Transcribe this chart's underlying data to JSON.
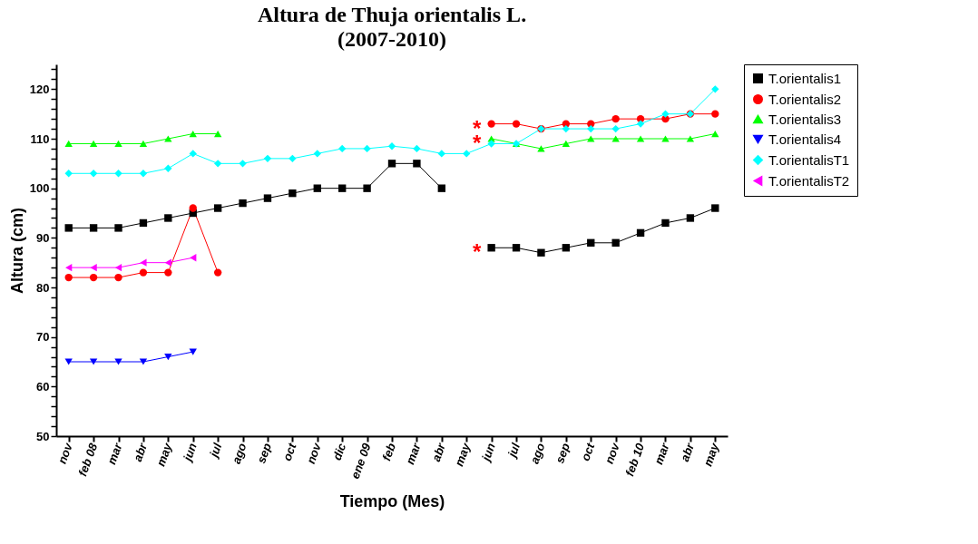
{
  "chart_data": {
    "type": "line",
    "title": "Altura de Thuja orientalis L.",
    "subtitle": "(2007-2010)",
    "xlabel": "Tiempo  (Mes)",
    "ylabel": "Altura  (cm)",
    "categories": [
      "nov",
      "feb  08",
      "mar",
      "abr",
      "may",
      "jun",
      "jul",
      "ago",
      "sep",
      "oct",
      "nov",
      "dic",
      "ene  09",
      "feb",
      "mar",
      "abr",
      "may",
      "jun",
      "jul",
      "ago",
      "sep",
      "oct",
      "nov",
      "feb  10",
      "mar",
      "abr",
      "may"
    ],
    "ylim": [
      50,
      125
    ],
    "yticks": [
      50,
      {
        "value": 52,
        "label": null
      },
      {
        "value": 54,
        "label": null
      },
      {
        "value": 56,
        "label": null
      },
      {
        "value": 58,
        "label": null
      },
      60,
      {
        "value": 62,
        "label": null
      },
      {
        "value": 64,
        "label": null
      },
      {
        "value": 66,
        "label": null
      },
      {
        "value": 68,
        "label": null
      },
      70,
      {
        "value": 72,
        "label": null
      },
      {
        "value": 74,
        "label": null
      },
      {
        "value": 76,
        "label": null
      },
      {
        "value": 78,
        "label": null
      },
      80,
      {
        "value": 82,
        "label": null
      },
      {
        "value": 84,
        "label": null
      },
      {
        "value": 86,
        "label": null
      },
      {
        "value": 88,
        "label": null
      },
      90,
      {
        "value": 92,
        "label": null
      },
      {
        "value": 94,
        "label": null
      },
      {
        "value": 96,
        "label": null
      },
      {
        "value": 98,
        "label": null
      },
      100,
      {
        "value": 102,
        "label": null
      },
      {
        "value": 104,
        "label": null
      },
      {
        "value": 106,
        "label": null
      },
      {
        "value": 108,
        "label": null
      },
      110,
      {
        "value": 112,
        "label": null
      },
      {
        "value": 114,
        "label": null
      },
      {
        "value": 116,
        "label": null
      },
      {
        "value": 118,
        "label": null
      },
      120,
      {
        "value": 122,
        "label": null
      },
      {
        "value": 124,
        "label": null
      }
    ],
    "grid": false,
    "legend": "right",
    "line_style": "solid",
    "series": [
      {
        "name": "T.orientalis1",
        "color": "#000000",
        "marker": "square",
        "values": [
          92,
          92,
          92,
          93,
          94,
          95,
          96,
          97,
          98,
          99,
          100,
          100,
          100,
          105,
          105,
          100,
          null,
          88,
          88,
          87,
          88,
          89,
          89,
          91,
          93,
          94,
          96
        ]
      },
      {
        "name": "T.orientalis2",
        "color": "#ff0000",
        "marker": "circle",
        "values": [
          82,
          82,
          82,
          83,
          83,
          96,
          83,
          null,
          null,
          null,
          null,
          null,
          null,
          null,
          null,
          null,
          null,
          113,
          113,
          112,
          113,
          113,
          114,
          114,
          114,
          115,
          115
        ]
      },
      {
        "name": "T.orientalis3",
        "color": "#00ff00",
        "marker": "triangle",
        "values": [
          109,
          109,
          109,
          109,
          110,
          111,
          111,
          null,
          null,
          null,
          null,
          null,
          null,
          null,
          null,
          null,
          null,
          110,
          109,
          108,
          109,
          110,
          110,
          110,
          110,
          110,
          111
        ]
      },
      {
        "name": "T.orientalis4",
        "color": "#0000ff",
        "marker": "triangle-down",
        "values": [
          65,
          65,
          65,
          65,
          66,
          67,
          null,
          null,
          null,
          null,
          null,
          null,
          null,
          null,
          null,
          null,
          null,
          null,
          null,
          null,
          null,
          null,
          null,
          null,
          null,
          null,
          null
        ]
      },
      {
        "name": "T.orientalisT1",
        "color": "#00ffff",
        "marker": "diamond",
        "values": [
          103,
          103,
          103,
          103,
          104,
          107,
          105,
          105,
          106,
          106,
          107,
          108,
          108,
          108.5,
          108,
          107,
          107,
          109,
          109,
          112,
          112,
          112,
          112,
          113,
          115,
          115,
          120
        ]
      },
      {
        "name": "T.orientalisT2",
        "color": "#ff00ff",
        "marker": "triangle-left",
        "values": [
          84,
          84,
          84,
          85,
          85,
          86,
          null,
          null,
          null,
          null,
          null,
          null,
          null,
          null,
          null,
          null,
          null,
          null,
          null,
          null,
          null,
          null,
          null,
          null,
          null,
          null,
          null
        ]
      }
    ],
    "annotations": [
      "*",
      "*",
      "*"
    ]
  }
}
